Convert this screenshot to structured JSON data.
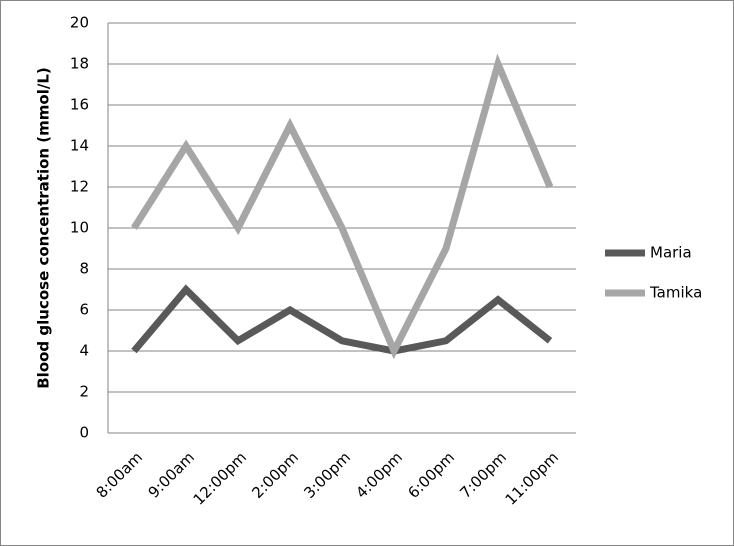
{
  "chart_data": {
    "type": "line",
    "y_label": "Blood glucose concentration (mmol/L)",
    "categories": [
      "8:00am",
      "9:00am",
      "12:00pm",
      "2:00pm",
      "3:00pm",
      "4:00pm",
      "6:00pm",
      "7:00pm",
      "11:00pm"
    ],
    "series": [
      {
        "name": "Maria",
        "color": "#595959",
        "values": [
          4,
          7,
          4.5,
          6,
          4.5,
          4,
          4.5,
          6.5,
          4.5
        ]
      },
      {
        "name": "Tamika",
        "color": "#a6a6a6",
        "values": [
          10,
          14,
          10,
          15,
          10,
          4,
          9,
          18,
          12
        ]
      }
    ],
    "ylim": [
      0,
      20
    ],
    "yticks": [
      0,
      2,
      4,
      6,
      8,
      10,
      12,
      14,
      16,
      18,
      20
    ],
    "grid": true,
    "legend": "right"
  }
}
